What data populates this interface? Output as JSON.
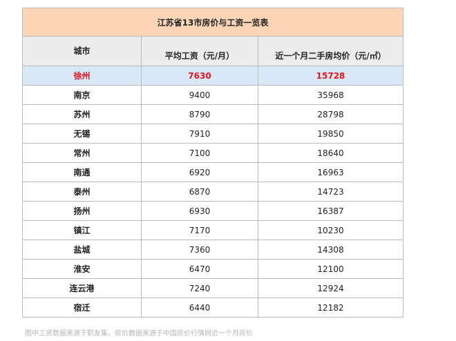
{
  "table": {
    "title": "江苏省13市房价与工资一览表",
    "headers": {
      "city": "城市",
      "wage": "平均工资（元/月）",
      "price": "近一个月二手房均价（元/㎡）"
    },
    "rows": [
      {
        "city": "徐州",
        "wage": "7630",
        "price": "15728",
        "highlight": true
      },
      {
        "city": "南京",
        "wage": "9400",
        "price": "35968"
      },
      {
        "city": "苏州",
        "wage": "8790",
        "price": "28798"
      },
      {
        "city": "无锡",
        "wage": "7910",
        "price": "19850"
      },
      {
        "city": "常州",
        "wage": "7100",
        "price": "18640"
      },
      {
        "city": "南通",
        "wage": "6920",
        "price": "16963"
      },
      {
        "city": "泰州",
        "wage": "6870",
        "price": "14723"
      },
      {
        "city": "扬州",
        "wage": "6930",
        "price": "16387"
      },
      {
        "city": "镇江",
        "wage": "7170",
        "price": "10230"
      },
      {
        "city": "盐城",
        "wage": "7360",
        "price": "14308"
      },
      {
        "city": "淮安",
        "wage": "6470",
        "price": "12100"
      },
      {
        "city": "连云港",
        "wage": "7240",
        "price": "12924"
      },
      {
        "city": "宿迁",
        "wage": "6440",
        "price": "12182"
      }
    ],
    "colors": {
      "title_bg": "#fbd5b5",
      "header_bg": "#ececec",
      "highlight_bg": "#d9e8f7",
      "highlight_text": "#e0141a"
    }
  },
  "footer": {
    "note": "图中工资数据来源于职友集，房价数据来源于中国房价行情网近一个月房价"
  }
}
